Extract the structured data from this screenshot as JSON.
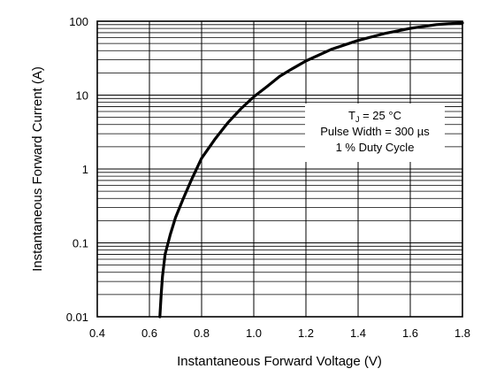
{
  "chart_data": {
    "type": "line",
    "title": "",
    "xlabel": "Instantaneous Forward Voltage (V)",
    "ylabel": "Instantaneous Forward Current (A)",
    "xlim": [
      0.4,
      1.8
    ],
    "ylim": [
      0.01,
      100
    ],
    "y_scale": "log",
    "grid": true,
    "x_ticks": [
      0.4,
      0.6,
      0.8,
      1.0,
      1.2,
      1.4,
      1.6,
      1.8
    ],
    "x_tick_labels": [
      "0.4",
      "0.6",
      "0.8",
      "1.0",
      "1.2",
      "1.4",
      "1.6",
      "1.8"
    ],
    "y_ticks": [
      0.01,
      0.1,
      1,
      10,
      100
    ],
    "y_tick_labels": [
      "0.01",
      "0.1",
      "1",
      "10",
      "100"
    ],
    "series": [
      {
        "color": "#000000",
        "x": [
          0.64,
          0.645,
          0.65,
          0.66,
          0.68,
          0.7,
          0.73,
          0.76,
          0.8,
          0.85,
          0.9,
          0.95,
          1.0,
          1.05,
          1.1,
          1.15,
          1.2,
          1.3,
          1.4,
          1.5,
          1.6,
          1.7,
          1.8
        ],
        "y": [
          0.01,
          0.02,
          0.035,
          0.07,
          0.13,
          0.22,
          0.4,
          0.7,
          1.4,
          2.5,
          4.2,
          6.5,
          9.5,
          13,
          18,
          23,
          29,
          42,
          55,
          68,
          80,
          90,
          95
        ]
      }
    ],
    "annotation": {
      "line1_main": "T",
      "line1_sub": "J",
      "line1_rest": " = 25 °C",
      "line2": "Pulse Width = 300 µs",
      "line3": "1 % Duty Cycle"
    }
  }
}
